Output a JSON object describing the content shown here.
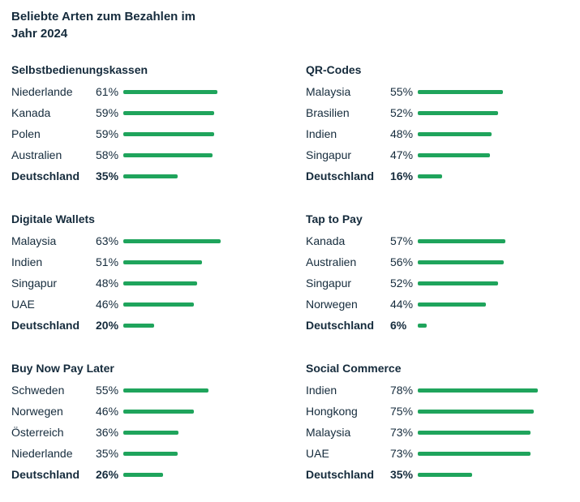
{
  "header": {
    "title": "Beliebte Arten zum Bezahlen im\nJahr 2024"
  },
  "colors": {
    "bar_green": "#1FA45C",
    "text_dark": "#152B3C",
    "background": "#FFFFFF"
  },
  "chart_data": [
    {
      "type": "bar",
      "title": "Selbstbedienungskassen",
      "unit": "%",
      "xlim": [
        0,
        100
      ],
      "orientation": "horizontal",
      "rows": [
        {
          "label": "Niederlande",
          "value": 61,
          "display": "61%",
          "emphasis": false
        },
        {
          "label": "Kanada",
          "value": 59,
          "display": "59%",
          "emphasis": false
        },
        {
          "label": "Polen",
          "value": 59,
          "display": "59%",
          "emphasis": false
        },
        {
          "label": "Australien",
          "value": 58,
          "display": "58%",
          "emphasis": false
        },
        {
          "label": "Deutschland",
          "value": 35,
          "display": "35%",
          "emphasis": true
        }
      ]
    },
    {
      "type": "bar",
      "title": "QR-Codes",
      "unit": "%",
      "xlim": [
        0,
        100
      ],
      "orientation": "horizontal",
      "rows": [
        {
          "label": "Malaysia",
          "value": 55,
          "display": "55%",
          "emphasis": false
        },
        {
          "label": "Brasilien",
          "value": 52,
          "display": "52%",
          "emphasis": false
        },
        {
          "label": "Indien",
          "value": 48,
          "display": "48%",
          "emphasis": false
        },
        {
          "label": "Singapur",
          "value": 47,
          "display": "47%",
          "emphasis": false
        },
        {
          "label": "Deutschland",
          "value": 16,
          "display": "16%",
          "emphasis": true
        }
      ]
    },
    {
      "type": "bar",
      "title": "Digitale Wallets",
      "unit": "%",
      "xlim": [
        0,
        100
      ],
      "orientation": "horizontal",
      "rows": [
        {
          "label": "Malaysia",
          "value": 63,
          "display": "63%",
          "emphasis": false
        },
        {
          "label": "Indien",
          "value": 51,
          "display": "51%",
          "emphasis": false
        },
        {
          "label": "Singapur",
          "value": 48,
          "display": "48%",
          "emphasis": false
        },
        {
          "label": "UAE",
          "value": 46,
          "display": "46%",
          "emphasis": false
        },
        {
          "label": "Deutschland",
          "value": 20,
          "display": "20%",
          "emphasis": true
        }
      ]
    },
    {
      "type": "bar",
      "title": "Tap to Pay",
      "unit": "%",
      "xlim": [
        0,
        100
      ],
      "orientation": "horizontal",
      "rows": [
        {
          "label": "Kanada",
          "value": 57,
          "display": "57%",
          "emphasis": false
        },
        {
          "label": "Australien",
          "value": 56,
          "display": "56%",
          "emphasis": false
        },
        {
          "label": "Singapur",
          "value": 52,
          "display": "52%",
          "emphasis": false
        },
        {
          "label": "Norwegen",
          "value": 44,
          "display": "44%",
          "emphasis": false
        },
        {
          "label": "Deutschland",
          "value": 6,
          "display": "6%",
          "emphasis": true
        }
      ]
    },
    {
      "type": "bar",
      "title": "Buy Now Pay Later",
      "unit": "%",
      "xlim": [
        0,
        100
      ],
      "orientation": "horizontal",
      "rows": [
        {
          "label": "Schweden",
          "value": 55,
          "display": "55%",
          "emphasis": false
        },
        {
          "label": "Norwegen",
          "value": 46,
          "display": "46%",
          "emphasis": false
        },
        {
          "label": "Österreich",
          "value": 36,
          "display": "36%",
          "emphasis": false
        },
        {
          "label": "Niederlande",
          "value": 35,
          "display": "35%",
          "emphasis": false
        },
        {
          "label": "Deutschland",
          "value": 26,
          "display": "26%",
          "emphasis": true
        }
      ]
    },
    {
      "type": "bar",
      "title": "Social Commerce",
      "unit": "%",
      "xlim": [
        0,
        100
      ],
      "orientation": "horizontal",
      "rows": [
        {
          "label": "Indien",
          "value": 78,
          "display": "78%",
          "emphasis": false
        },
        {
          "label": "Hongkong",
          "value": 75,
          "display": "75%",
          "emphasis": false
        },
        {
          "label": "Malaysia",
          "value": 73,
          "display": "73%",
          "emphasis": false
        },
        {
          "label": "UAE",
          "value": 73,
          "display": "73%",
          "emphasis": false
        },
        {
          "label": "Deutschland",
          "value": 35,
          "display": "35%",
          "emphasis": true
        }
      ]
    }
  ]
}
